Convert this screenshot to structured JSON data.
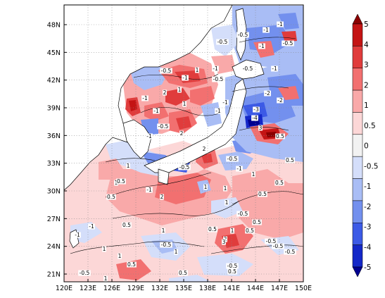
{
  "map": {
    "x_ticks": [
      "120E",
      "123E",
      "126E",
      "129E",
      "132E",
      "135E",
      "138E",
      "141E",
      "144E",
      "147E",
      "150E"
    ],
    "y_ticks": [
      "48N",
      "45N",
      "42N",
      "39N",
      "36N",
      "33N",
      "30N",
      "27N",
      "24N",
      "21N"
    ],
    "grid": "dotted",
    "colorbar": {
      "orientation": "vertical",
      "placement": "right",
      "levels": [
        "5",
        "4",
        "3",
        "2",
        "1",
        "0.5",
        "0",
        "-0.5",
        "-1",
        "-2",
        "-3",
        "-4",
        "-5"
      ],
      "colors": [
        "#8b0000",
        "#c41414",
        "#e03c3c",
        "#f27070",
        "#f9a9a9",
        "#fcd7d7",
        "#f2f2f2",
        "#d4defa",
        "#a9bdf5",
        "#7390ee",
        "#3c5ae6",
        "#1428c8",
        "#000090"
      ]
    },
    "contour_labels": [
      "-1",
      "-0.5",
      "-1",
      "-0.5",
      "-1",
      "-0.5",
      "-1",
      "1",
      "-0.5",
      "-1",
      "-0.5",
      "-0.5",
      "-1",
      "-2",
      "1",
      "2",
      "-1",
      "-1",
      "-3",
      "-4",
      "-2",
      "3",
      "-1",
      "0.5",
      "1",
      "-0.5",
      "-1",
      "2",
      "-1",
      "2",
      "-0.5",
      "-1",
      "1",
      "0.5",
      "-0.5",
      "1",
      "1",
      "-1",
      "0.5",
      "0.5",
      "2",
      "1",
      "0.5",
      "1",
      "0.5",
      "-0.5",
      "1",
      "0.5",
      "-1",
      "0.5",
      "-1",
      "-0.5",
      "1",
      "0.5",
      "1",
      "0.5",
      "1",
      "-0.5",
      "2",
      "1",
      "-0.5",
      "3",
      "-0.5",
      "-0.5",
      "1",
      "0.5",
      "0.5",
      "0.5",
      "1",
      "-0.5"
    ]
  }
}
